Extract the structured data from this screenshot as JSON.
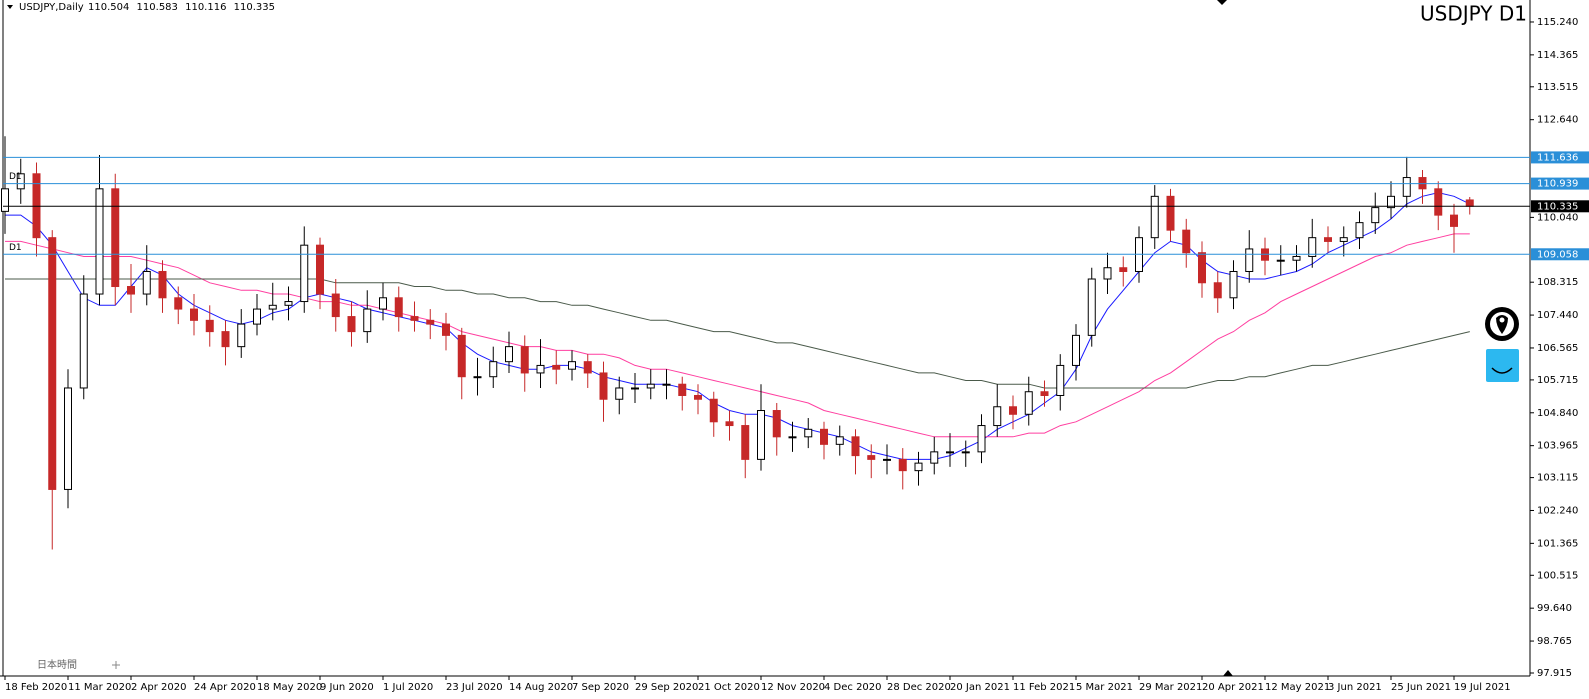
{
  "chart_data": {
    "type": "candlestick",
    "title": "USDJPY D1",
    "header": "USDJPY,Daily",
    "footer_label": "日本時間",
    "categories": [
      "18 Feb 2020",
      null,
      null,
      null,
      "11 Mar 2020",
      null,
      null,
      null,
      "2 Apr 2020",
      null,
      null,
      null,
      "24 Apr 2020",
      null,
      null,
      null,
      "18 May 2020",
      null,
      null,
      null,
      "9 Jun 2020",
      null,
      null,
      null,
      "1 Jul 2020",
      null,
      null,
      null,
      "23 Jul 2020",
      null,
      null,
      null,
      "14 Aug 2020",
      null,
      null,
      null,
      "7 Sep 2020",
      null,
      null,
      null,
      "29 Sep 2020",
      null,
      null,
      null,
      "21 Oct 2020",
      null,
      null,
      null,
      "12 Nov 2020",
      null,
      null,
      null,
      "4 Dec 2020",
      null,
      null,
      null,
      "28 Dec 2020",
      null,
      null,
      null,
      "20 Jan 2021",
      null,
      null,
      null,
      "11 Feb 2021",
      null,
      null,
      null,
      "5 Mar 2021",
      null,
      null,
      null,
      "29 Mar 2021",
      null,
      null,
      null,
      "20 Apr 2021",
      null,
      null,
      null,
      "12 May 2021",
      null,
      null,
      null,
      "3 Jun 2021",
      null,
      null,
      null,
      "25 Jun 2021",
      null,
      null,
      null,
      "19 Jul 2021",
      null
    ],
    "open": [
      110.2,
      110.8,
      111.2,
      109.5,
      102.8,
      105.5,
      108.0,
      110.8,
      108.2,
      108.0,
      108.6,
      107.9,
      107.6,
      107.3,
      107.0,
      106.6,
      107.2,
      107.6,
      107.7,
      107.8,
      109.3,
      108.0,
      107.4,
      107.0,
      107.6,
      107.9,
      107.4,
      107.3,
      107.2,
      106.9,
      105.8,
      105.8,
      106.2,
      106.6,
      105.9,
      106.1,
      106.0,
      106.2,
      105.9,
      105.2,
      105.5,
      105.5,
      105.6,
      105.6,
      105.3,
      105.2,
      104.6,
      104.5,
      103.6,
      104.9,
      104.2,
      104.2,
      104.4,
      104.0,
      104.2,
      103.7,
      103.6,
      103.6,
      103.3,
      103.5,
      103.8,
      103.8,
      103.8,
      104.5,
      105.0,
      104.8,
      105.4,
      105.3,
      106.1,
      106.9,
      108.4,
      108.7,
      108.6,
      109.5,
      110.6,
      109.7,
      109.1,
      108.3,
      107.9,
      108.6,
      109.2,
      108.9,
      108.9,
      109.0,
      109.5,
      109.4,
      109.5,
      109.9,
      110.3,
      110.6,
      111.1,
      110.8,
      110.1,
      110.504
    ],
    "high": [
      112.2,
      111.6,
      111.5,
      109.7,
      106.0,
      108.5,
      111.7,
      111.2,
      108.8,
      109.3,
      108.9,
      108.2,
      108.0,
      107.7,
      107.3,
      107.6,
      108.0,
      108.3,
      108.2,
      109.8,
      109.5,
      108.4,
      107.8,
      108.1,
      108.3,
      108.2,
      107.8,
      107.6,
      107.5,
      107.1,
      106.3,
      106.6,
      107.0,
      106.9,
      106.8,
      106.5,
      106.5,
      106.4,
      106.2,
      105.8,
      105.9,
      106.0,
      106.0,
      105.8,
      105.6,
      105.4,
      104.9,
      104.8,
      105.6,
      105.1,
      104.6,
      104.7,
      104.6,
      104.5,
      104.4,
      104.0,
      104.0,
      103.9,
      103.8,
      104.2,
      104.3,
      104.1,
      104.8,
      105.6,
      105.3,
      105.8,
      105.7,
      106.4,
      107.2,
      108.7,
      109.1,
      109.0,
      109.8,
      110.9,
      110.8,
      110.0,
      109.4,
      108.6,
      108.9,
      109.7,
      109.5,
      109.3,
      109.3,
      110.0,
      109.8,
      109.8,
      110.2,
      110.7,
      111.0,
      111.65,
      111.3,
      111.0,
      110.4,
      110.583
    ],
    "low": [
      109.6,
      110.4,
      109.0,
      101.2,
      102.3,
      105.2,
      107.7,
      107.7,
      107.5,
      107.7,
      107.5,
      107.2,
      106.9,
      106.6,
      106.1,
      106.3,
      106.9,
      107.3,
      107.3,
      107.5,
      107.6,
      107.0,
      106.6,
      106.7,
      107.3,
      107.0,
      107.0,
      106.8,
      106.5,
      105.2,
      105.3,
      105.5,
      105.9,
      105.4,
      105.5,
      105.6,
      105.7,
      105.5,
      104.6,
      104.8,
      105.1,
      105.2,
      105.2,
      104.9,
      104.8,
      104.2,
      104.1,
      103.1,
      103.3,
      103.7,
      103.8,
      103.9,
      103.6,
      103.7,
      103.2,
      103.1,
      103.2,
      102.8,
      102.9,
      103.2,
      103.4,
      103.4,
      103.5,
      104.2,
      104.4,
      104.5,
      105.0,
      104.9,
      105.7,
      106.6,
      108.0,
      108.2,
      108.3,
      109.2,
      109.4,
      108.7,
      107.9,
      107.5,
      107.6,
      108.3,
      108.5,
      108.5,
      108.6,
      108.7,
      109.1,
      109.0,
      109.2,
      109.6,
      110.0,
      110.3,
      110.4,
      109.7,
      109.1,
      110.116
    ],
    "close": [
      110.8,
      111.2,
      109.5,
      102.8,
      105.5,
      108.0,
      110.8,
      108.2,
      108.0,
      108.6,
      107.9,
      107.6,
      107.3,
      107.0,
      106.6,
      107.2,
      107.6,
      107.7,
      107.8,
      109.3,
      108.0,
      107.4,
      107.0,
      107.6,
      107.9,
      107.4,
      107.3,
      107.2,
      106.9,
      105.8,
      105.8,
      106.2,
      106.6,
      105.9,
      106.1,
      106.0,
      106.2,
      105.9,
      105.2,
      105.5,
      105.5,
      105.6,
      105.6,
      105.3,
      105.2,
      104.6,
      104.5,
      103.6,
      104.9,
      104.2,
      104.2,
      104.4,
      104.0,
      104.2,
      103.7,
      103.6,
      103.6,
      103.3,
      103.5,
      103.8,
      103.8,
      103.8,
      104.5,
      105.0,
      104.8,
      105.4,
      105.3,
      106.1,
      106.9,
      108.4,
      108.7,
      108.6,
      109.5,
      110.6,
      109.7,
      109.1,
      108.3,
      107.9,
      108.6,
      109.2,
      108.9,
      108.9,
      109.0,
      109.5,
      109.4,
      109.5,
      109.9,
      110.3,
      110.6,
      111.1,
      110.8,
      110.1,
      109.8,
      110.335
    ],
    "up_color": "#ffffff",
    "down_color": "#c62828",
    "series": [
      {
        "color": "#1a1aff",
        "values": [
          110.1,
          110.1,
          109.8,
          109.3,
          108.6,
          107.9,
          107.7,
          107.7,
          108.2,
          108.7,
          108.5,
          108.0,
          107.7,
          107.5,
          107.3,
          107.2,
          107.3,
          107.5,
          107.6,
          107.9,
          108.0,
          107.9,
          107.8,
          107.6,
          107.5,
          107.4,
          107.3,
          107.2,
          107.1,
          106.7,
          106.4,
          106.2,
          106.1,
          106.0,
          106.0,
          106.1,
          106.1,
          106.0,
          105.8,
          105.7,
          105.6,
          105.6,
          105.6,
          105.5,
          105.4,
          105.1,
          104.9,
          104.8,
          104.8,
          104.7,
          104.5,
          104.4,
          104.3,
          104.2,
          104.0,
          103.8,
          103.7,
          103.6,
          103.6,
          103.6,
          103.7,
          103.9,
          104.1,
          104.4,
          104.6,
          104.8,
          105.1,
          105.4,
          106.0,
          106.9,
          107.6,
          108.1,
          108.6,
          109.1,
          109.4,
          109.3,
          108.9,
          108.6,
          108.5,
          108.4,
          108.4,
          108.5,
          108.6,
          108.8,
          109.1,
          109.3,
          109.5,
          109.7,
          110.0,
          110.4,
          110.6,
          110.7,
          110.6,
          110.4
        ]
      },
      {
        "color": "#ff3fa0",
        "values": [
          109.4,
          109.4,
          109.3,
          109.2,
          109.1,
          109.0,
          109.0,
          109.0,
          109.0,
          108.9,
          108.8,
          108.7,
          108.5,
          108.3,
          108.2,
          108.1,
          108.1,
          108.0,
          108.0,
          107.9,
          107.8,
          107.8,
          107.7,
          107.7,
          107.6,
          107.5,
          107.4,
          107.3,
          107.2,
          107.0,
          106.9,
          106.8,
          106.7,
          106.6,
          106.6,
          106.5,
          106.5,
          106.4,
          106.4,
          106.3,
          106.1,
          106.0,
          106.0,
          105.9,
          105.8,
          105.7,
          105.6,
          105.5,
          105.4,
          105.3,
          105.2,
          105.1,
          104.9,
          104.8,
          104.7,
          104.6,
          104.5,
          104.4,
          104.3,
          104.2,
          104.2,
          104.2,
          104.2,
          104.2,
          104.2,
          104.3,
          104.3,
          104.5,
          104.6,
          104.8,
          105.0,
          105.2,
          105.4,
          105.7,
          105.9,
          106.2,
          106.5,
          106.8,
          107.0,
          107.3,
          107.5,
          107.8,
          108.0,
          108.2,
          108.4,
          108.6,
          108.8,
          109.0,
          109.1,
          109.3,
          109.4,
          109.5,
          109.6,
          109.6
        ]
      },
      {
        "color": "#4a5a4a",
        "values": [
          108.4,
          108.4,
          108.4,
          108.4,
          108.4,
          108.4,
          108.4,
          108.4,
          108.4,
          108.4,
          108.4,
          108.4,
          108.4,
          108.4,
          108.4,
          108.4,
          108.4,
          108.4,
          108.4,
          108.4,
          108.4,
          108.3,
          108.3,
          108.3,
          108.3,
          108.3,
          108.2,
          108.2,
          108.1,
          108.1,
          108.0,
          108.0,
          107.9,
          107.9,
          107.8,
          107.8,
          107.7,
          107.7,
          107.6,
          107.5,
          107.4,
          107.3,
          107.3,
          107.2,
          107.1,
          107.0,
          107.0,
          106.9,
          106.8,
          106.7,
          106.7,
          106.6,
          106.5,
          106.4,
          106.3,
          106.2,
          106.1,
          106.0,
          105.9,
          105.9,
          105.8,
          105.7,
          105.7,
          105.6,
          105.6,
          105.6,
          105.5,
          105.5,
          105.5,
          105.5,
          105.5,
          105.5,
          105.5,
          105.5,
          105.5,
          105.5,
          105.6,
          105.7,
          105.7,
          105.8,
          105.8,
          105.9,
          106.0,
          106.1,
          106.1,
          106.2,
          106.3,
          106.4,
          106.5,
          106.6,
          106.7,
          106.8,
          106.9,
          107.0
        ]
      }
    ],
    "levels": [
      {
        "value": 111.636,
        "color": "#2a8fd8"
      },
      {
        "value": 110.939,
        "color": "#2a8fd8",
        "text": "D1"
      },
      {
        "value": 109.058,
        "color": "#2a8fd8",
        "text": "D1"
      }
    ],
    "bid_color": "#000000",
    "ylim": [
      97.835,
      115.825
    ],
    "yticks": [
      {
        "value": 115.24,
        "label": "115.240"
      },
      114.365,
      113.515,
      {
        "value": 112.64,
        "label": "112.640"
      },
      {
        "value": 110.04,
        "label": "110.040"
      },
      108.315,
      {
        "value": 107.44,
        "label": "107.440"
      },
      106.565,
      105.715,
      {
        "value": 104.84,
        "label": "104.840"
      },
      103.965,
      103.115,
      {
        "value": 102.24,
        "label": "102.240"
      },
      101.365,
      100.515,
      {
        "value": 99.64,
        "label": "99.640"
      },
      98.765,
      97.915
    ]
  }
}
